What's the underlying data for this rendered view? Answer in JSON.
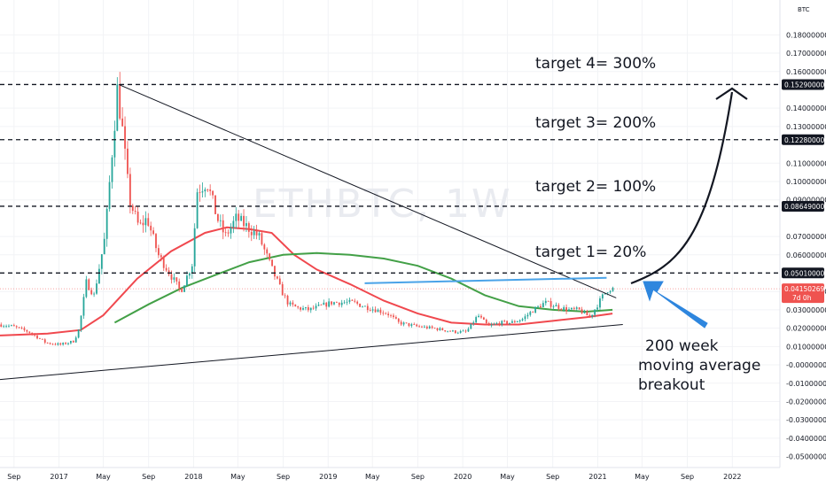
{
  "chart_data": {
    "type": "candlestick",
    "symbol": "ETHBTC, 1W",
    "y_axis_unit_label": "BTC",
    "ylim": [
      -0.056,
      0.199
    ],
    "xlim": [
      "2016-07-25",
      "2022-05-10"
    ],
    "y_ticks": [
      "0.18000000",
      "0.17000000",
      "0.16000000",
      "0.14000000",
      "0.13000000",
      "0.11000000",
      "0.10000000",
      "0.09000000",
      "0.07000000",
      "0.06000000",
      "0.04000000",
      "0.03000000",
      "0.02000000",
      "0.01000000",
      "-0.00000000",
      "-0.01000000",
      "-0.02000000",
      "-0.03000000",
      "-0.04000000",
      "-0.05000000"
    ],
    "x_ticks": [
      {
        "label": "Sep",
        "date": "2016-09-01"
      },
      {
        "label": "2017",
        "date": "2017-01-01"
      },
      {
        "label": "May",
        "date": "2017-05-01"
      },
      {
        "label": "Sep",
        "date": "2017-09-01"
      },
      {
        "label": "2018",
        "date": "2018-01-01"
      },
      {
        "label": "May",
        "date": "2018-05-01"
      },
      {
        "label": "Sep",
        "date": "2018-09-01"
      },
      {
        "label": "2019",
        "date": "2019-01-01"
      },
      {
        "label": "May",
        "date": "2019-05-01"
      },
      {
        "label": "Sep",
        "date": "2019-09-01"
      },
      {
        "label": "2020",
        "date": "2020-01-01"
      },
      {
        "label": "May",
        "date": "2020-05-01"
      },
      {
        "label": "Sep",
        "date": "2020-09-01"
      },
      {
        "label": "2021",
        "date": "2021-01-01"
      },
      {
        "label": "May",
        "date": "2021-05-01"
      },
      {
        "label": "Sep",
        "date": "2021-09-01"
      },
      {
        "label": "2022",
        "date": "2022-01-01"
      }
    ],
    "price_path": [
      [
        "2016-07-25",
        0.022
      ],
      [
        "2016-09-01",
        0.021
      ],
      [
        "2016-10-15",
        0.018
      ],
      [
        "2016-12-01",
        0.012
      ],
      [
        "2017-01-10",
        0.011
      ],
      [
        "2017-02-15",
        0.013
      ],
      [
        "2017-03-01",
        0.02
      ],
      [
        "2017-03-20",
        0.045
      ],
      [
        "2017-04-10",
        0.038
      ],
      [
        "2017-05-10",
        0.07
      ],
      [
        "2017-06-12",
        0.15
      ],
      [
        "2017-06-25",
        0.13
      ],
      [
        "2017-07-15",
        0.09
      ],
      [
        "2017-08-10",
        0.075
      ],
      [
        "2017-09-01",
        0.08
      ],
      [
        "2017-10-01",
        0.06
      ],
      [
        "2017-11-01",
        0.05
      ],
      [
        "2017-12-01",
        0.04
      ],
      [
        "2018-01-01",
        0.055
      ],
      [
        "2018-01-15",
        0.095
      ],
      [
        "2018-02-10",
        0.1
      ],
      [
        "2018-03-10",
        0.08
      ],
      [
        "2018-04-01",
        0.07
      ],
      [
        "2018-05-01",
        0.08
      ],
      [
        "2018-06-01",
        0.075
      ],
      [
        "2018-07-01",
        0.07
      ],
      [
        "2018-08-10",
        0.05
      ],
      [
        "2018-09-01",
        0.04
      ],
      [
        "2018-09-20",
        0.033
      ],
      [
        "2018-10-15",
        0.031
      ],
      [
        "2018-11-15",
        0.03
      ],
      [
        "2018-12-15",
        0.032
      ],
      [
        "2019-01-15",
        0.034
      ],
      [
        "2019-03-15",
        0.034
      ],
      [
        "2019-04-10",
        0.032
      ],
      [
        "2019-05-15",
        0.03
      ],
      [
        "2019-06-15",
        0.028
      ],
      [
        "2019-07-15",
        0.023
      ],
      [
        "2019-09-01",
        0.021
      ],
      [
        "2019-10-15",
        0.02
      ],
      [
        "2019-12-15",
        0.018
      ],
      [
        "2020-01-15",
        0.018
      ],
      [
        "2020-02-15",
        0.027
      ],
      [
        "2020-03-15",
        0.021
      ],
      [
        "2020-04-15",
        0.023
      ],
      [
        "2020-05-15",
        0.023
      ],
      [
        "2020-06-15",
        0.025
      ],
      [
        "2020-07-15",
        0.03
      ],
      [
        "2020-08-15",
        0.034
      ],
      [
        "2020-09-15",
        0.032
      ],
      [
        "2020-10-15",
        0.03
      ],
      [
        "2020-11-15",
        0.03
      ],
      [
        "2020-12-15",
        0.026
      ],
      [
        "2021-01-05",
        0.033
      ],
      [
        "2021-01-20",
        0.038
      ],
      [
        "2021-02-05",
        0.042
      ],
      [
        "2021-02-10",
        0.04150269
      ]
    ],
    "series": [
      {
        "name": "",
        "color": "#f0484e",
        "values": [
          [
            "2016-07-25",
            0.016
          ],
          [
            "2016-12-01",
            0.017
          ],
          [
            "2017-03-01",
            0.019
          ],
          [
            "2017-05-01",
            0.027
          ],
          [
            "2017-08-01",
            0.047
          ],
          [
            "2017-11-01",
            0.062
          ],
          [
            "2018-02-01",
            0.072
          ],
          [
            "2018-04-01",
            0.075
          ],
          [
            "2018-06-01",
            0.074
          ],
          [
            "2018-08-01",
            0.072
          ],
          [
            "2018-10-01",
            0.06
          ],
          [
            "2018-12-01",
            0.052
          ],
          [
            "2019-03-01",
            0.044
          ],
          [
            "2019-06-01",
            0.035
          ],
          [
            "2019-09-01",
            0.028
          ],
          [
            "2019-12-01",
            0.023
          ],
          [
            "2020-03-01",
            0.022
          ],
          [
            "2020-06-01",
            0.022
          ],
          [
            "2020-09-01",
            0.024
          ],
          [
            "2020-12-01",
            0.026
          ],
          [
            "2021-02-10",
            0.028
          ]
        ]
      },
      {
        "name": "",
        "color": "#43a047",
        "values": [
          [
            "2017-06-01",
            0.023
          ],
          [
            "2017-09-01",
            0.033
          ],
          [
            "2017-12-01",
            0.042
          ],
          [
            "2018-03-01",
            0.049
          ],
          [
            "2018-06-01",
            0.056
          ],
          [
            "2018-09-01",
            0.06
          ],
          [
            "2018-12-01",
            0.061
          ],
          [
            "2019-03-01",
            0.06
          ],
          [
            "2019-06-01",
            0.058
          ],
          [
            "2019-09-01",
            0.054
          ],
          [
            "2019-12-01",
            0.047
          ],
          [
            "2020-03-01",
            0.038
          ],
          [
            "2020-06-01",
            0.032
          ],
          [
            "2020-09-01",
            0.03
          ],
          [
            "2020-12-01",
            0.029
          ],
          [
            "2021-02-10",
            0.03
          ]
        ]
      }
    ],
    "horizontal_lines": [
      {
        "value": 0.1529,
        "label": "0.15290000"
      },
      {
        "value": 0.1228,
        "label": "0.12280000"
      },
      {
        "value": 0.08649,
        "label": "0.08649000"
      },
      {
        "value": 0.0501,
        "label": "0.05010000"
      }
    ],
    "last_price": {
      "value": 0.04150269,
      "label": "0.04150269",
      "countdown": "7d 0h"
    },
    "trendlines": [
      {
        "from": [
          "2017-06-12",
          0.1529
        ],
        "to": [
          "2021-02-20",
          0.0365
        ]
      },
      {
        "from": [
          "2016-07-25",
          -0.008
        ],
        "to": [
          "2021-03-10",
          0.022
        ]
      }
    ],
    "breakout_line": {
      "from": [
        "2019-04-10",
        0.0445
      ],
      "to": [
        "2021-01-25",
        0.0475
      ]
    },
    "annotations": [
      "target 4= 300%",
      "target 3= 200%",
      "target 2= 100%",
      "target 1= 20%",
      "200 week",
      "moving average",
      "breakout"
    ],
    "colors": {
      "up": "#26a69a",
      "down": "#ef5350",
      "breakout": "#4aa3e8",
      "arrow": "#2e86de",
      "line": "#131722"
    }
  }
}
